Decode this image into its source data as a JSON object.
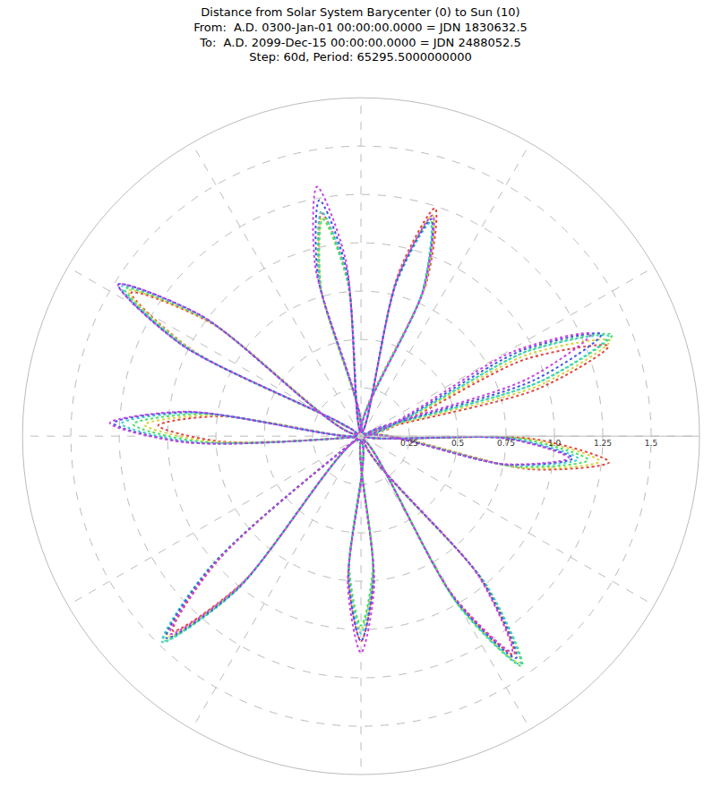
{
  "chart_data": {
    "type": "polar",
    "title": "Distance from Solar System Barycenter (0) to Sun (10)",
    "subtitle": [
      "From:  A.D. 0300-Jan-01 00:00:00.0000 = JDN 1830632.5",
      "To:  A.D. 2099-Dec-15 00:00:00.0000 = JDN 2488052.5",
      "Step: 60d, Period: 65295.5000000000"
    ],
    "xlim": [
      0,
      360
    ],
    "xticks": [
      0,
      30,
      60,
      90,
      120,
      150,
      180,
      210,
      240,
      270,
      300,
      330
    ],
    "ylim": [
      0,
      1.75
    ],
    "yticks": [
      0.25,
      0.5,
      0.75,
      {
        "value": 1,
        "label": "1.0"
      },
      1.25,
      1.5
    ],
    "tick_labels": "y",
    "grid": true,
    "line_style": "dotted",
    "series": [
      {
        "color": "#e04545",
        "x": [
          -149,
          -139,
          -134,
          -129,
          -105,
          -95,
          -90,
          -85,
          -70,
          -60,
          -55,
          -50,
          -21,
          -11,
          -6,
          -1,
          5,
          15,
          20,
          25,
          57,
          67,
          72,
          77,
          85,
          95,
          100,
          105,
          133,
          143,
          148,
          153,
          162,
          172,
          177,
          182,
          192
        ],
        "values": [
          0.02,
          0.98,
          1.4,
          0.98,
          0.02,
          0.74,
          1.06,
          0.74,
          0.02,
          0.97,
          1.38,
          0.97,
          0.02,
          0.9,
          1.29,
          0.9,
          0.02,
          0.95,
          1.36,
          0.95,
          0.02,
          0.87,
          1.24,
          0.87,
          0.02,
          0.82,
          1.17,
          0.82,
          0.02,
          0.98,
          1.4,
          0.98,
          0.02,
          0.74,
          1.05,
          0.74,
          0.02
        ]
      },
      {
        "color": "#d8d43c",
        "x": [
          -149,
          -139,
          -134,
          -129,
          -105,
          -95,
          -90,
          -85,
          -70,
          -60,
          -55,
          -50,
          -21,
          -11,
          -6,
          -1,
          6,
          16,
          21,
          26,
          57,
          67,
          72,
          77,
          85,
          95,
          100,
          105,
          133,
          143,
          148,
          153,
          162,
          172,
          177,
          182,
          192
        ],
        "values": [
          0.02,
          1.01,
          1.44,
          1.01,
          0.02,
          0.7,
          1.0,
          0.7,
          0.02,
          1.0,
          1.43,
          1.0,
          0.02,
          0.87,
          1.24,
          0.87,
          0.02,
          0.97,
          1.38,
          0.97,
          0.02,
          0.84,
          1.2,
          0.84,
          0.02,
          0.81,
          1.15,
          0.81,
          0.02,
          0.99,
          1.42,
          0.99,
          0.02,
          0.78,
          1.12,
          0.78,
          0.02
        ]
      },
      {
        "color": "#48e060",
        "x": [
          -149,
          -139,
          -134,
          -129,
          -105,
          -95,
          -90,
          -85,
          -70,
          -60,
          -55,
          -50,
          -21,
          -11,
          -6,
          -1,
          7,
          17,
          22,
          27,
          57,
          67,
          72,
          77,
          85,
          95,
          100,
          105,
          133,
          143,
          148,
          153,
          162,
          172,
          177,
          182,
          192
        ],
        "values": [
          0.02,
          1.03,
          1.47,
          1.03,
          0.02,
          0.69,
          0.98,
          0.69,
          0.02,
          1.02,
          1.45,
          1.02,
          0.02,
          0.83,
          1.18,
          0.83,
          0.02,
          0.98,
          1.4,
          0.98,
          0.02,
          0.82,
          1.17,
          0.82,
          0.02,
          0.8,
          1.14,
          0.8,
          0.02,
          1.01,
          1.44,
          1.01,
          0.02,
          0.83,
          1.18,
          0.83,
          0.02
        ]
      },
      {
        "color": "#40d0d0",
        "x": [
          -149,
          -139,
          -134,
          -129,
          -105,
          -95,
          -90,
          -85,
          -70,
          -60,
          -55,
          -50,
          -21,
          -11,
          -6,
          -1,
          7,
          17,
          22,
          27,
          57,
          67,
          72,
          77,
          85,
          95,
          100,
          105,
          133,
          143,
          148,
          153,
          162,
          172,
          177,
          182,
          192
        ],
        "values": [
          0.02,
          1.04,
          1.48,
          1.04,
          0.02,
          0.71,
          1.02,
          0.71,
          0.02,
          1.01,
          1.44,
          1.01,
          0.02,
          0.79,
          1.13,
          0.79,
          0.02,
          0.97,
          1.38,
          0.97,
          0.02,
          0.81,
          1.16,
          0.81,
          0.02,
          0.83,
          1.18,
          0.83,
          0.02,
          1.02,
          1.46,
          1.02,
          0.02,
          0.87,
          1.24,
          0.87,
          0.02
        ]
      },
      {
        "color": "#4455e0",
        "x": [
          -149,
          -139,
          -134,
          -129,
          -105,
          -95,
          -90,
          -85,
          -70,
          -60,
          -55,
          -50,
          -21,
          -11,
          -6,
          -1,
          8,
          18,
          23,
          28,
          57,
          67,
          72,
          77,
          85,
          95,
          100,
          105,
          133,
          143,
          148,
          153,
          162,
          172,
          177,
          182,
          192
        ],
        "values": [
          0.02,
          1.02,
          1.45,
          1.02,
          0.02,
          0.74,
          1.06,
          0.74,
          0.02,
          0.98,
          1.4,
          0.98,
          0.02,
          0.77,
          1.1,
          0.77,
          0.02,
          0.95,
          1.35,
          0.95,
          0.02,
          0.83,
          1.18,
          0.83,
          0.02,
          0.87,
          1.24,
          0.87,
          0.02,
          1.04,
          1.48,
          1.04,
          0.02,
          0.9,
          1.28,
          0.9,
          0.02
        ]
      },
      {
        "color": "#c844e0",
        "x": [
          -149,
          -139,
          -134,
          -129,
          -105,
          -95,
          -90,
          -85,
          -70,
          -60,
          -55,
          -50,
          -21,
          -11,
          -6,
          -1,
          9,
          19,
          24,
          29,
          57,
          67,
          72,
          77,
          85,
          95,
          100,
          105,
          133,
          143,
          148,
          153,
          162,
          172,
          177,
          182,
          192
        ],
        "values": [
          0.02,
          0.99,
          1.42,
          0.99,
          0.02,
          0.78,
          1.12,
          0.78,
          0.02,
          0.95,
          1.36,
          0.95,
          0.02,
          0.76,
          1.08,
          0.76,
          0.02,
          0.91,
          1.3,
          0.91,
          0.02,
          0.84,
          1.2,
          0.84,
          0.02,
          0.92,
          1.31,
          0.92,
          0.02,
          1.04,
          1.48,
          1.04,
          0.02,
          0.91,
          1.3,
          0.91,
          0.02
        ]
      }
    ]
  }
}
